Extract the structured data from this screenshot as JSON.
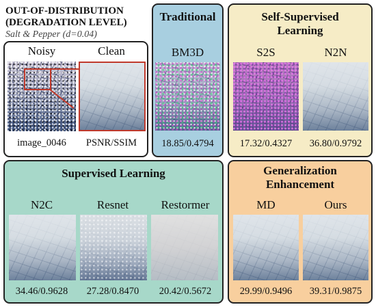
{
  "header": {
    "line1": "OUT-OF-DISTRIBUTION",
    "line2": "(DEGRADATION LEVEL)",
    "subtitle": "Salt & Pepper (d=0.04)"
  },
  "reference_panel": {
    "noisy_label": "Noisy",
    "clean_label": "Clean",
    "image_id": "image_0046",
    "metric_label": "PSNR/SSIM"
  },
  "traditional": {
    "title": "Traditional",
    "methods": [
      {
        "label": "BM3D",
        "metric": "18.85/0.4794"
      }
    ]
  },
  "self_supervised": {
    "title_line1": "Self-Supervised",
    "title_line2": "Learning",
    "methods": [
      {
        "label": "S2S",
        "metric": "17.32/0.4327"
      },
      {
        "label": "N2N",
        "metric": "36.80/0.9792"
      }
    ]
  },
  "supervised": {
    "title": "Supervised Learning",
    "methods": [
      {
        "label": "N2C",
        "metric": "34.46/0.9628"
      },
      {
        "label": "Resnet",
        "metric": "27.28/0.8470"
      },
      {
        "label": "Restormer",
        "metric": "20.42/0.5672"
      }
    ]
  },
  "generalization": {
    "title_line1": "Generalization",
    "title_line2": "Enhancement",
    "methods": [
      {
        "label": "MD",
        "metric": "29.99/0.9496"
      },
      {
        "label": "Ours",
        "metric": "39.31/0.9875"
      }
    ]
  },
  "colors": {
    "traditional_bg": "#a8cfe0",
    "self_supervised_bg": "#f6ecc6",
    "supervised_bg": "#a7d8c9",
    "generalization_bg": "#f8cf9e",
    "zoom_box": "#c0392b"
  }
}
